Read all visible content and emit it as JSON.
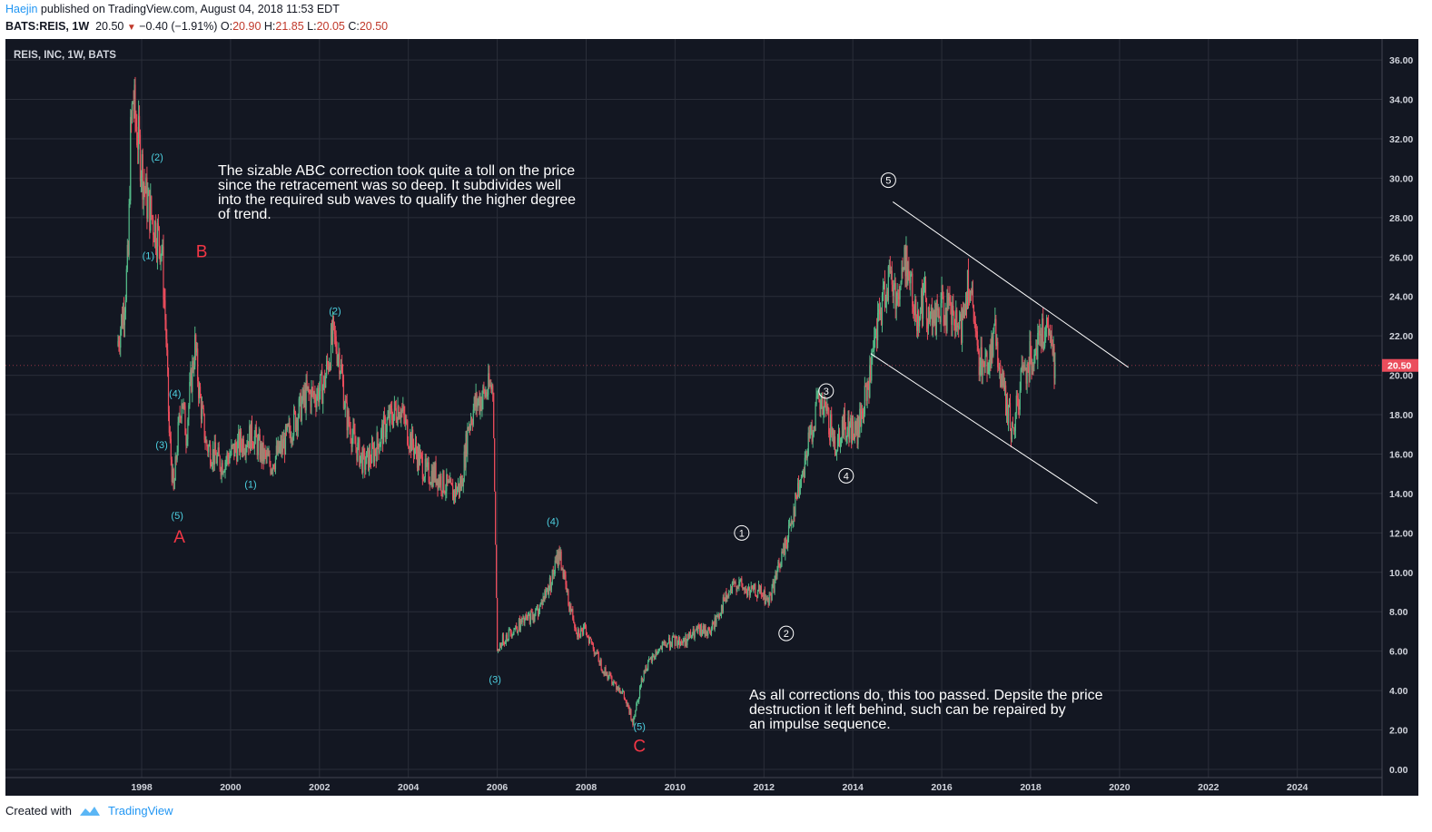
{
  "header": {
    "author": "Haejin",
    "published_text": "published on TradingView.com, August 04, 2018 11:53 EDT",
    "symbol": "BATS:REIS, 1W",
    "last": "20.50",
    "change": "−0.40 (−1.91%)",
    "o_label": "O:",
    "o": "20.90",
    "h_label": "H:",
    "h": "21.85",
    "l_label": "L:",
    "l": "20.05",
    "c_label": "C:",
    "c": "20.50"
  },
  "pane_title": "REIS, INC, 1W, BATS",
  "footer": {
    "created_with": "Created with",
    "brand": "TradingView"
  },
  "colors": {
    "background": "#131722",
    "grid": "#2a2e39",
    "up": "#53b987",
    "down": "#eb4d5c",
    "wave_label": "#4dd0e1",
    "abc_label": "#f23645",
    "trendline": "#ffffff"
  },
  "annotations": {
    "text1": [
      "The sizable ABC correction took quite a toll on the price",
      "since the retracement was so deep. It subdivides well",
      "into the required sub waves to qualify the higher degree",
      "of trend."
    ],
    "text2": [
      "As all corrections do, this too passed. Depsite the price",
      "destruction it left behind, such can be repaired by",
      "an impulse sequence."
    ]
  },
  "chart_data": {
    "type": "line",
    "chart_style": "candlestick",
    "title": "REIS, INC, 1W, BATS",
    "ylim": [
      0,
      36
    ],
    "y_ticks": [
      "0.00",
      "2.00",
      "4.00",
      "6.00",
      "8.00",
      "10.00",
      "12.00",
      "14.00",
      "16.00",
      "18.00",
      "20.00",
      "22.00",
      "24.00",
      "26.00",
      "28.00",
      "30.00",
      "32.00",
      "34.00",
      "36.00"
    ],
    "x_ticks": [
      "1998",
      "2000",
      "2002",
      "2004",
      "2006",
      "2008",
      "2010",
      "2012",
      "2014",
      "2016",
      "2018",
      "2020",
      "2022",
      "2024"
    ],
    "last_price_label": "20.50",
    "grid": true,
    "series": [
      {
        "x": [
          1997.45,
          1997.6,
          1997.7,
          1997.75,
          1997.8,
          1997.95,
          1998.1,
          1998.3,
          1998.45,
          1998.55,
          1998.62,
          1998.72,
          1998.8,
          1998.9,
          1999.0,
          1999.1,
          1999.2,
          1999.3,
          1999.45,
          1999.6,
          1999.8,
          2000.0,
          2000.2,
          2000.5,
          2000.7,
          2000.9,
          2001.2,
          2001.5,
          2001.7,
          2001.9,
          2002.1,
          2002.3,
          2002.45,
          2002.6,
          2002.8,
          2003.0,
          2003.2,
          2003.5,
          2003.8,
          2004.0,
          2004.2,
          2004.4,
          2004.6,
          2004.8,
          2005.0,
          2005.2,
          2005.35,
          2005.5,
          2005.7,
          2005.9,
          2006.0,
          2006.1,
          2006.3,
          2006.6,
          2006.9,
          2007.2,
          2007.4,
          2007.6,
          2007.8,
          2008.0,
          2008.2,
          2008.4,
          2008.6,
          2008.8,
          2008.95,
          2009.05,
          2009.15,
          2009.3,
          2009.6,
          2009.9,
          2010.2,
          2010.5,
          2010.8,
          2011.1,
          2011.4,
          2011.6,
          2011.9,
          2012.1,
          2012.3,
          2012.5,
          2012.8,
          2013.0,
          2013.2,
          2013.4,
          2013.6,
          2013.8,
          2014.1,
          2014.4,
          2014.6,
          2014.8,
          2015.0,
          2015.2,
          2015.4,
          2015.6,
          2015.8,
          2016.0,
          2016.2,
          2016.4,
          2016.6,
          2016.8,
          2017.0,
          2017.2,
          2017.4,
          2017.6,
          2017.8,
          2018.0,
          2018.2,
          2018.4,
          2018.55
        ],
        "y": [
          21.5,
          23.5,
          26.0,
          32.0,
          34.0,
          31.5,
          29.0,
          27.5,
          26.5,
          22.0,
          17.0,
          14.0,
          16.5,
          19.0,
          17.0,
          19.5,
          21.5,
          19.0,
          16.5,
          16.0,
          15.5,
          16.0,
          16.5,
          17.0,
          16.0,
          15.5,
          16.5,
          18.0,
          19.0,
          19.0,
          19.5,
          22.0,
          21.0,
          18.0,
          16.5,
          15.5,
          16.0,
          17.5,
          18.5,
          17.0,
          16.0,
          15.0,
          15.0,
          14.5,
          14.0,
          14.5,
          17.5,
          18.5,
          19.0,
          19.5,
          6.0,
          6.5,
          7.0,
          7.5,
          8.0,
          9.5,
          11.0,
          8.5,
          7.0,
          7.0,
          6.0,
          5.0,
          4.5,
          4.0,
          3.0,
          2.5,
          3.5,
          5.0,
          6.0,
          6.5,
          6.5,
          7.0,
          7.0,
          8.5,
          9.5,
          9.0,
          9.0,
          8.5,
          10.0,
          11.5,
          14.5,
          16.5,
          18.5,
          18.0,
          16.5,
          17.5,
          17.0,
          20.0,
          23.0,
          25.0,
          24.0,
          26.0,
          23.0,
          24.0,
          22.5,
          23.5,
          23.0,
          22.0,
          25.0,
          21.0,
          20.5,
          22.0,
          19.0,
          17.0,
          20.0,
          21.0,
          22.0,
          22.0,
          20.5
        ]
      }
    ],
    "wave_labels": [
      {
        "text": "(2)",
        "x": 1998.35,
        "y": 30.9
      },
      {
        "text": "(1)",
        "x": 1998.15,
        "y": 25.9
      },
      {
        "text": "(4)",
        "x": 1998.75,
        "y": 18.9
      },
      {
        "text": "(3)",
        "x": 1998.45,
        "y": 16.3
      },
      {
        "text": "(5)",
        "x": 1998.8,
        "y": 12.7
      },
      {
        "text": "(1)",
        "x": 2000.45,
        "y": 14.3
      },
      {
        "text": "(2)",
        "x": 2002.35,
        "y": 23.1
      },
      {
        "text": "(3)",
        "x": 2005.95,
        "y": 4.4
      },
      {
        "text": "(4)",
        "x": 2007.25,
        "y": 12.4
      },
      {
        "text": "(5)",
        "x": 2009.2,
        "y": 2.0
      }
    ],
    "abc_labels": [
      {
        "text": "A",
        "x": 1998.85,
        "y": 11.5
      },
      {
        "text": "B",
        "x": 1999.35,
        "y": 26.0
      },
      {
        "text": "C",
        "x": 2009.2,
        "y": 0.9
      }
    ],
    "impulse_labels": [
      {
        "text": "1",
        "x": 2011.5,
        "y": 12.0
      },
      {
        "text": "2",
        "x": 2012.5,
        "y": 6.9
      },
      {
        "text": "3",
        "x": 2013.4,
        "y": 19.2
      },
      {
        "text": "4",
        "x": 2013.85,
        "y": 14.9
      },
      {
        "text": "5",
        "x": 2014.8,
        "y": 29.9
      }
    ],
    "trendlines": [
      {
        "x1": 2014.9,
        "y1": 28.8,
        "x2": 2020.2,
        "y2": 20.4
      },
      {
        "x1": 2014.4,
        "y1": 21.1,
        "x2": 2019.5,
        "y2": 13.5
      }
    ]
  }
}
